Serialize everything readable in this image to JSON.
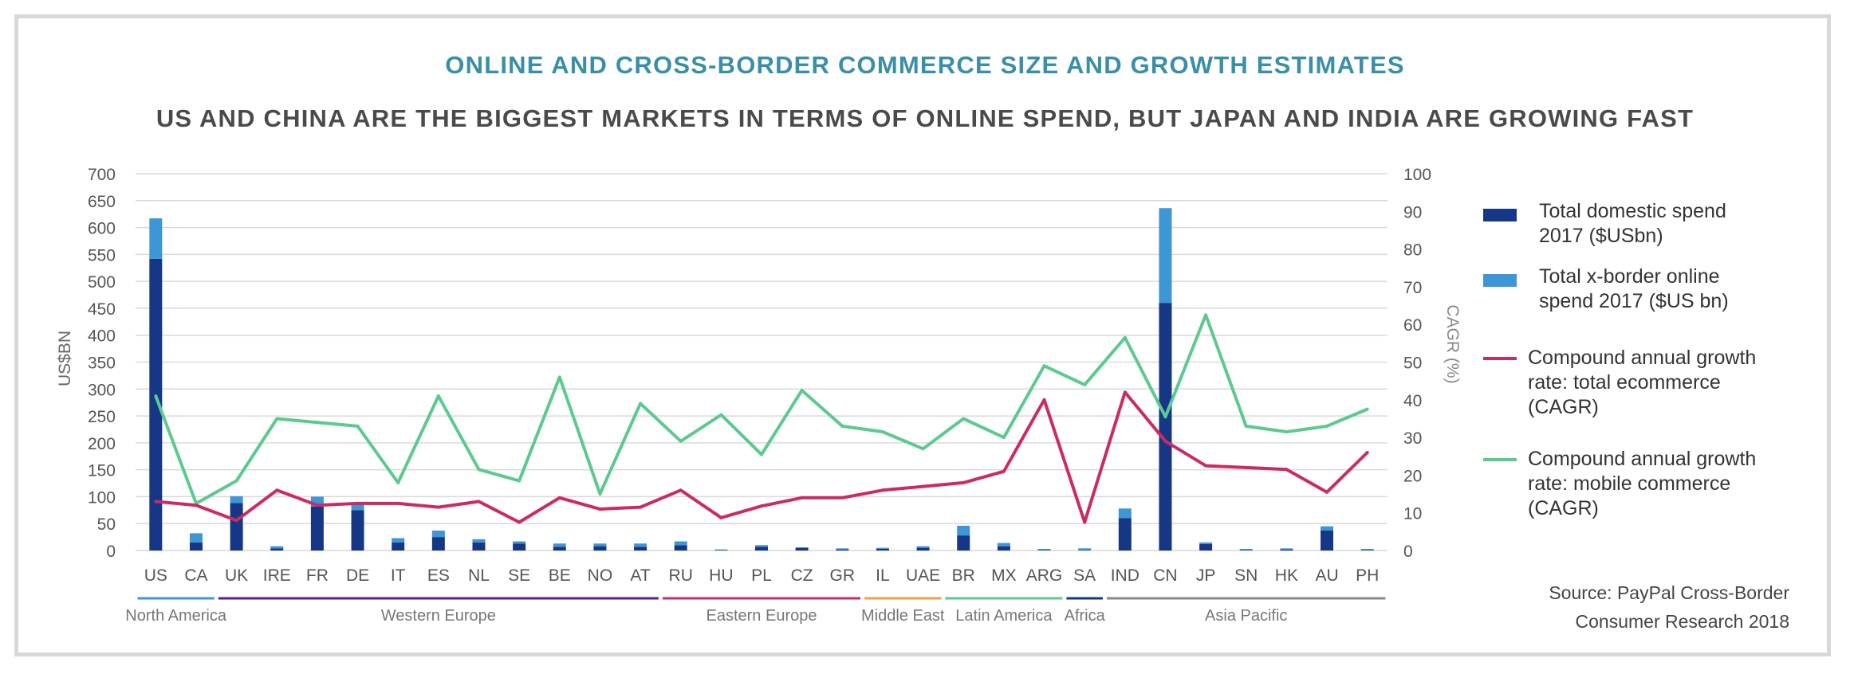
{
  "header": {
    "title": "ONLINE AND CROSS-BORDER COMMERCE SIZE AND GROWTH ESTIMATES",
    "subtitle": "US AND CHINA ARE THE BIGGEST MARKETS IN TERMS OF ONLINE SPEND, BUT JAPAN AND INDIA ARE GROWING FAST"
  },
  "source": {
    "line1": "Source: PayPal Cross-Border",
    "line2": "Consumer Research 2018"
  },
  "colors": {
    "domestic": "#153785",
    "xborder": "#3d96d6",
    "cagr_total": "#cc2a64",
    "cagr_mobile": "#5cc98f",
    "grid": "#d9d9d9",
    "axis_text": "#555555"
  },
  "chart_data": {
    "type": "bar",
    "categories": [
      "US",
      "CA",
      "UK",
      "IRE",
      "FR",
      "DE",
      "IT",
      "ES",
      "NL",
      "SE",
      "BE",
      "NO",
      "AT",
      "RU",
      "HU",
      "PL",
      "CZ",
      "GR",
      "IL",
      "UAE",
      "BR",
      "MX",
      "ARG",
      "SA",
      "IND",
      "CN",
      "JP",
      "SN",
      "HK",
      "AU",
      "PH"
    ],
    "ylabel": "US$BN",
    "y2label": "CAGR (%)",
    "ylim": [
      0,
      700
    ],
    "y2lim": [
      0,
      100
    ],
    "yticks": [
      "0",
      "50",
      "100",
      "150",
      "200",
      "250",
      "300",
      "350",
      "400",
      "450",
      "500",
      "550",
      "600",
      "650",
      "700"
    ],
    "y2ticks": [
      "0",
      "10",
      "20",
      "30",
      "40",
      "50",
      "60",
      "70",
      "80",
      "90",
      "100"
    ],
    "series": [
      {
        "name": "Total domestic spend 2017 ($USbn)",
        "kind": "stacked-bar",
        "values": [
          542,
          15,
          88,
          4,
          82,
          75,
          15,
          25,
          15,
          13,
          7,
          8,
          7,
          10,
          1,
          7,
          5,
          2,
          3,
          5,
          28,
          8,
          1,
          1,
          60,
          460,
          12,
          1,
          2,
          37,
          1
        ]
      },
      {
        "name": "Total x-border online spend 2017  ($US bn)",
        "kind": "stacked-bar",
        "values": [
          75,
          17,
          13,
          4,
          18,
          12,
          8,
          12,
          6,
          4,
          6,
          5,
          6,
          7,
          1,
          3,
          1,
          2,
          2,
          3,
          18,
          6,
          2,
          3,
          18,
          176,
          3,
          2,
          2,
          8,
          2
        ]
      },
      {
        "name": "Compound annual growth rate: total ecommerce (CAGR)",
        "kind": "line-secondary",
        "values": [
          13,
          12,
          8,
          16,
          12,
          12.5,
          12.5,
          11.5,
          13,
          7.5,
          14,
          11,
          11.5,
          16,
          8.7,
          11.8,
          14,
          14,
          16,
          17,
          18,
          21,
          40,
          7.5,
          42,
          29,
          22.5,
          22,
          21.5,
          15.5,
          26
        ]
      },
      {
        "name": "Compound annual growth rate: mobile commerce (CAGR)",
        "kind": "line-secondary",
        "values": [
          41,
          12.5,
          18.5,
          35,
          34,
          33,
          18,
          41,
          21.5,
          18.5,
          46,
          15,
          39,
          29,
          36,
          25.5,
          42.5,
          33,
          31.5,
          27,
          35,
          30,
          49,
          44,
          56.5,
          35.5,
          62.5,
          33,
          31.5,
          33,
          37.5
        ]
      }
    ],
    "regions": [
      {
        "name": "North America",
        "from": 0,
        "to": 1,
        "color": "#3d96d6"
      },
      {
        "name": "Western Europe",
        "from": 2,
        "to": 12,
        "color": "#5a1f8c"
      },
      {
        "name": "Eastern Europe",
        "from": 13,
        "to": 17,
        "color": "#cc2a64"
      },
      {
        "name": "Middle East",
        "from": 18,
        "to": 19,
        "color": "#f0a040"
      },
      {
        "name": "Latin America",
        "from": 20,
        "to": 22,
        "color": "#5cc98f"
      },
      {
        "name": "Africa",
        "from": 23,
        "to": 23,
        "color": "#153785"
      },
      {
        "name": "Asia Pacific",
        "from": 24,
        "to": 30,
        "color": "#888888"
      }
    ]
  }
}
